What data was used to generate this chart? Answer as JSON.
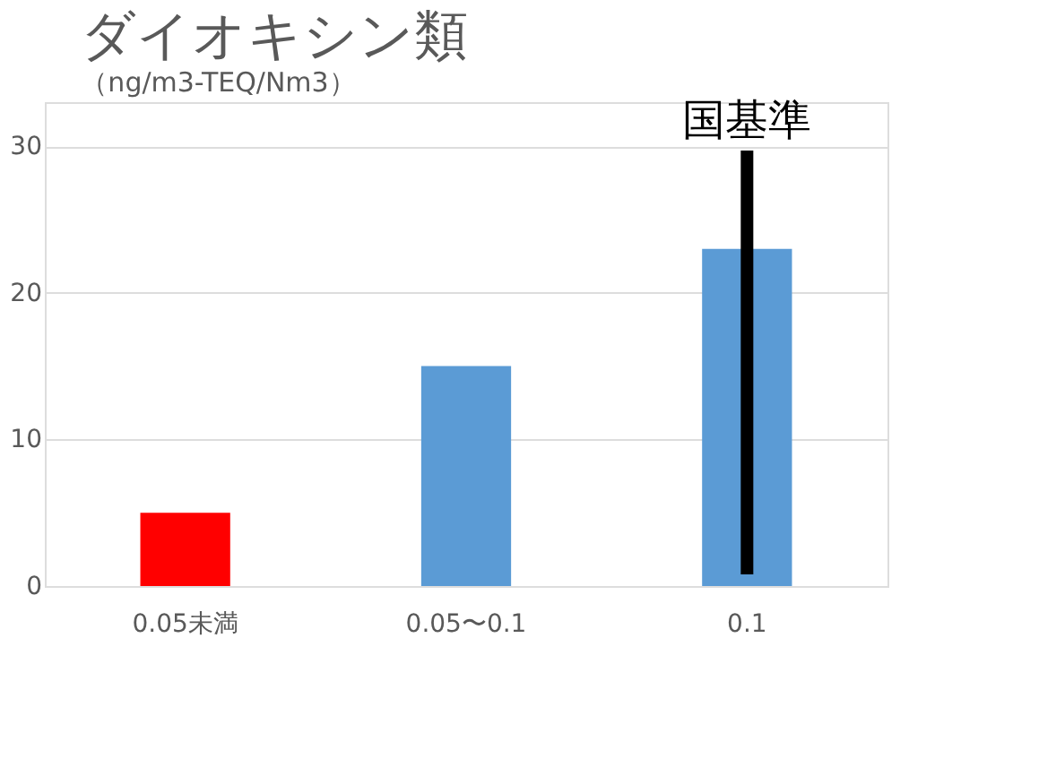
{
  "chart_data": {
    "type": "bar",
    "title": "ダイオキシン類",
    "subtitle": "（ng/m3-TEQ/Nm3）",
    "categories": [
      "0.05未満",
      "0.05〜0.1",
      "0.1"
    ],
    "series": [
      {
        "colors": [
          "#ff0000",
          "#5b9bd5",
          "#5b9bd5"
        ],
        "values": [
          5,
          15,
          23
        ]
      },
      {
        "type": "line",
        "color": "#000000",
        "x": [
          "0.1",
          "0.1"
        ],
        "values": [
          0.8,
          29.7
        ]
      }
    ],
    "annotations": [
      {
        "text": "国基準",
        "x": "0.1",
        "y": 29.7
      }
    ],
    "ylim": [
      0,
      33
    ],
    "yticks": [
      0,
      10,
      20,
      30
    ],
    "grid": "y",
    "legend": false
  }
}
